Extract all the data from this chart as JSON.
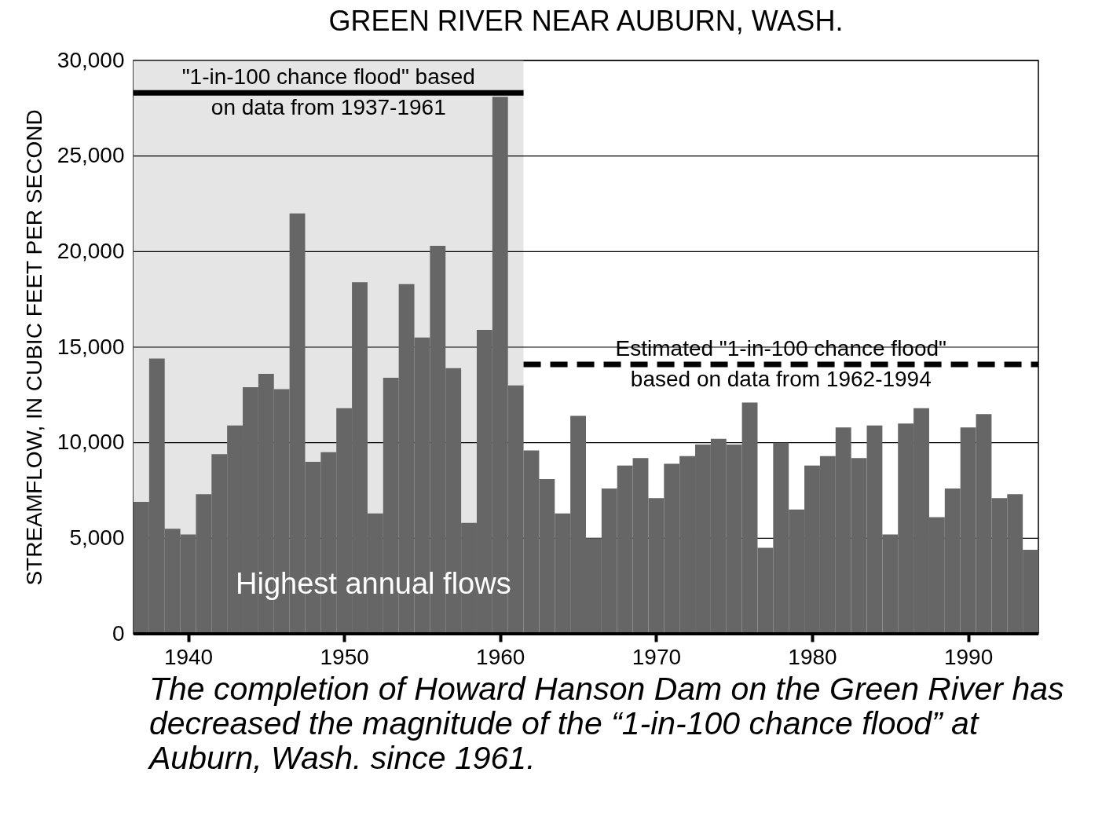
{
  "chart_data": {
    "type": "bar",
    "title": "GREEN RIVER NEAR AUBURN, WASH.",
    "ylabel": "STREAMFLOW, IN CUBIC FEET PER SECOND",
    "x": [
      1937,
      1938,
      1939,
      1940,
      1941,
      1942,
      1943,
      1944,
      1945,
      1946,
      1947,
      1948,
      1949,
      1950,
      1951,
      1952,
      1953,
      1954,
      1955,
      1956,
      1957,
      1958,
      1959,
      1960,
      1961,
      1962,
      1963,
      1964,
      1965,
      1966,
      1967,
      1968,
      1969,
      1970,
      1971,
      1972,
      1973,
      1974,
      1975,
      1976,
      1977,
      1978,
      1979,
      1980,
      1981,
      1982,
      1983,
      1984,
      1985,
      1986,
      1987,
      1988,
      1989,
      1990,
      1991,
      1992,
      1993,
      1994
    ],
    "values": [
      6900,
      14400,
      5500,
      5200,
      7300,
      9400,
      10900,
      12900,
      13600,
      12800,
      22000,
      9000,
      9500,
      11800,
      18400,
      6300,
      13400,
      18300,
      15500,
      20300,
      13900,
      5800,
      15900,
      28100,
      13000,
      9600,
      8100,
      6300,
      11400,
      5000,
      7600,
      8800,
      9200,
      7100,
      8900,
      9300,
      9900,
      10200,
      9900,
      12100,
      4500,
      10000,
      6500,
      8800,
      9300,
      10800,
      9200,
      10900,
      5200,
      11000,
      11800,
      6100,
      7600,
      10800,
      11500,
      7100,
      7300,
      4400
    ],
    "color": "#666666",
    "xlim": [
      1936.5,
      1994.5
    ],
    "xticks": [
      1940,
      1950,
      1960,
      1970,
      1980,
      1990
    ],
    "ylim": [
      0,
      30000
    ],
    "yticks": [
      {
        "value": 0,
        "label": "0"
      },
      {
        "value": 5000,
        "label": "5,000"
      },
      {
        "value": 10000,
        "label": "10,000"
      },
      {
        "value": 15000,
        "label": "15,000"
      },
      {
        "value": 20000,
        "label": "20,000"
      },
      {
        "value": 25000,
        "label": "25,000"
      },
      {
        "value": 30000,
        "label": "30,000"
      }
    ],
    "grid": "y",
    "bands": [
      {
        "axis": "x",
        "from": 1936.5,
        "to": 1961.5,
        "color": "#e5e5e5"
      }
    ],
    "ref_lines": [
      {
        "axis": "y",
        "value": 28300,
        "label": "\"1-in-100 chance flood\" based on data from 1937-1961",
        "line_style": "solid"
      },
      {
        "axis": "y",
        "value": 14100,
        "label": "Estimated \"1-in-100 chance flood\" based on data from 1962-1994",
        "line_style": "dashed"
      }
    ],
    "annotations": [
      "Highest annual flows",
      "The completion of Howard Hanson Dam on the Green River has decreased the magnitude of the “1-in-100 chance flood” at Auburn, Wash. since 1961."
    ]
  }
}
